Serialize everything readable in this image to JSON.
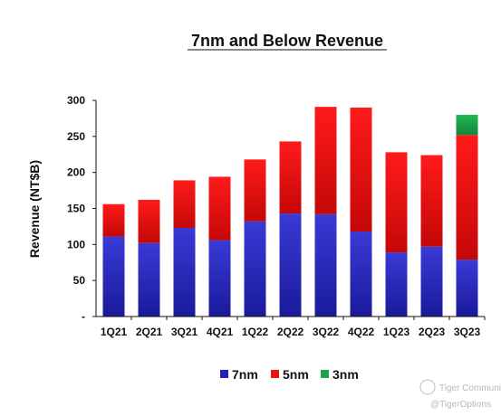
{
  "chart_data": {
    "type": "bar",
    "stacked": true,
    "title": "7nm and Below Revenue",
    "ylabel": "Revenue (NT$B)",
    "xlabel": "",
    "ylim": [
      0,
      300
    ],
    "yticks": [
      0,
      50,
      100,
      150,
      200,
      250,
      300
    ],
    "ytick_labels": [
      "-",
      "50",
      "100",
      "150",
      "200",
      "250",
      "300"
    ],
    "categories": [
      "1Q21",
      "2Q21",
      "3Q21",
      "4Q21",
      "1Q22",
      "2Q22",
      "3Q22",
      "4Q22",
      "1Q23",
      "2Q23",
      "3Q23"
    ],
    "series": [
      {
        "name": "7nm",
        "color": "#2323b8",
        "values": [
          111,
          102,
          123,
          106,
          132,
          143,
          142,
          118,
          89,
          97,
          79
        ]
      },
      {
        "name": "5nm",
        "color": "#ee1111",
        "values": [
          45,
          60,
          66,
          88,
          86,
          100,
          149,
          172,
          139,
          127,
          173
        ]
      },
      {
        "name": "3nm",
        "color": "#1aa54a",
        "values": [
          0,
          0,
          0,
          0,
          0,
          0,
          0,
          0,
          0,
          0,
          28
        ]
      }
    ],
    "grid": false,
    "legend_position": "bottom-center"
  },
  "watermark": {
    "line1": "Tiger Community",
    "line2": "@TigerOptions"
  }
}
